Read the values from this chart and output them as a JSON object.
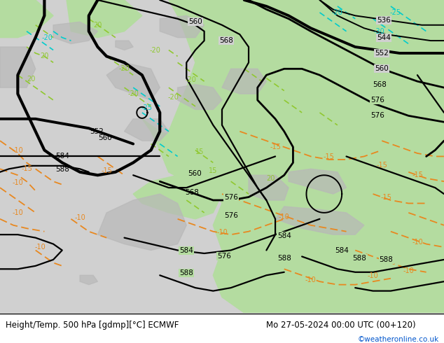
{
  "title_left": "Height/Temp. 500 hPa [gdmp][°C] ECMWF",
  "title_right": "Mo 27-05-2024 00:00 UTC (00+120)",
  "credit": "©weatheronline.co.uk",
  "figsize": [
    6.34,
    4.9
  ],
  "dpi": 100,
  "bg_gray": "#c8c8c8",
  "land_gray": "#c8c8c8",
  "land_green": "#b4dca0",
  "black": "#000000",
  "orange": "#e88820",
  "cyan": "#00cccc",
  "green_temp": "#90c830",
  "white": "#ffffff"
}
